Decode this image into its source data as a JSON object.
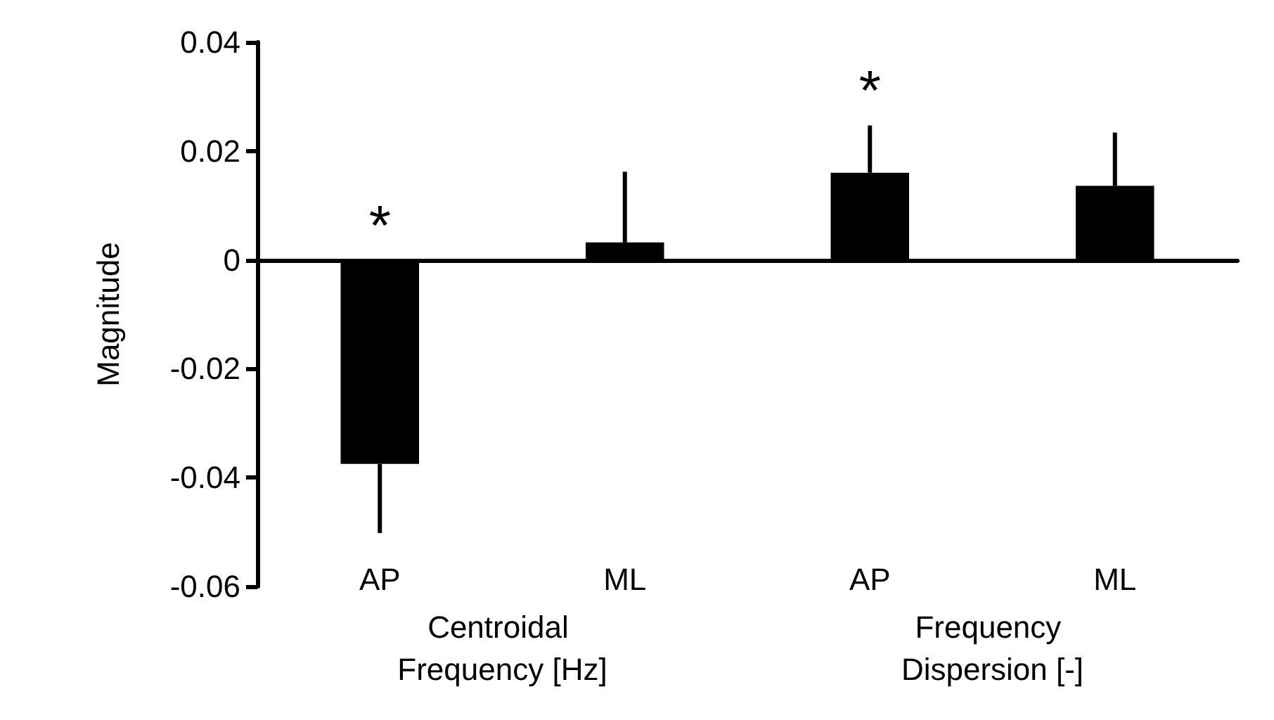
{
  "chart_data": {
    "type": "bar",
    "ylabel": "Magnitude",
    "categories": [
      "AP",
      "ML",
      "AP",
      "ML"
    ],
    "values": [
      -0.0375,
      0.0032,
      0.016,
      0.0136
    ],
    "errors": [
      [
        -0.0502,
        -0.0375
      ],
      [
        0.0032,
        0.0162
      ],
      [
        0.016,
        0.0247
      ],
      [
        0.0136,
        0.0234
      ]
    ],
    "color": "#000000",
    "ylim": [
      -0.06,
      0.04
    ],
    "yticks": [
      -0.06,
      -0.04,
      -0.02,
      0,
      0.02,
      0.04
    ],
    "annotations": [
      "Centroidal Frequency [Hz]",
      "Frequency Dispersion [-]",
      "*",
      "*"
    ]
  }
}
